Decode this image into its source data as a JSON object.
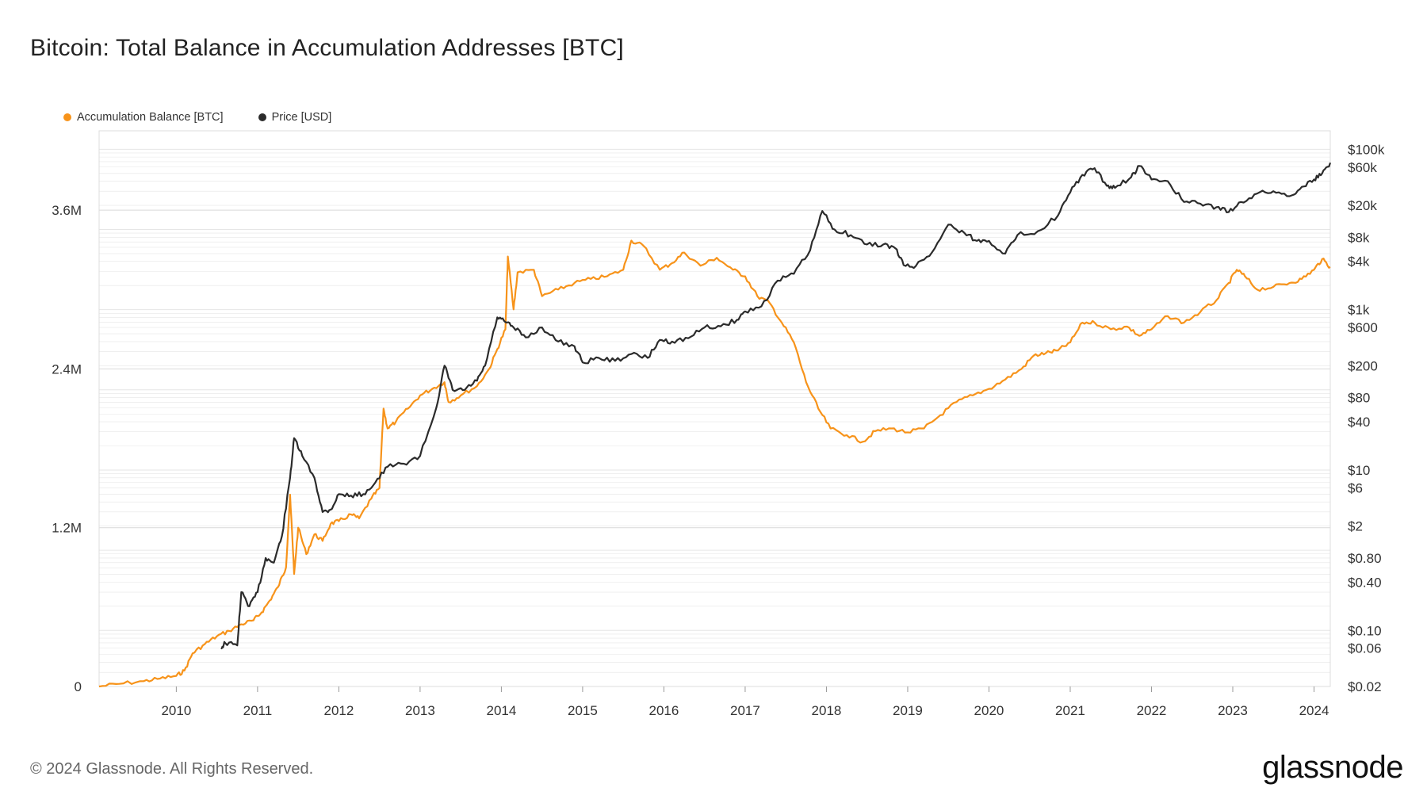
{
  "title": "Bitcoin: Total Balance in Accumulation Addresses [BTC]",
  "footer": "© 2024 Glassnode. All Rights Reserved.",
  "logo": "glassnode",
  "colors": {
    "balance": "#F7931A",
    "price": "#2B2B2B",
    "grid": "#E6E6E6",
    "frame": "#DDDDDD"
  },
  "chart_data": {
    "type": "line",
    "title": "Bitcoin: Total Balance in Accumulation Addresses [BTC]",
    "legend_position": "top-left",
    "grid": true,
    "x_ticks": [
      "2010",
      "2011",
      "2012",
      "2013",
      "2014",
      "2015",
      "2016",
      "2017",
      "2018",
      "2019",
      "2020",
      "2021",
      "2022",
      "2023",
      "2024"
    ],
    "x_range": [
      2009.05,
      2024.2
    ],
    "y_left": {
      "ticks": [
        {
          "value": 0,
          "label": "0"
        },
        {
          "value": 1200000,
          "label": "1.2M"
        },
        {
          "value": 2400000,
          "label": "2.4M"
        },
        {
          "value": 3600000,
          "label": "3.6M"
        }
      ],
      "range": [
        0,
        4200000
      ]
    },
    "y_right": {
      "scale": "log",
      "ticks": [
        {
          "value": 100000,
          "label": "$100k"
        },
        {
          "value": 60000,
          "label": "$60k"
        },
        {
          "value": 20000,
          "label": "$20k"
        },
        {
          "value": 8000,
          "label": "$8k"
        },
        {
          "value": 4000,
          "label": "$4k"
        },
        {
          "value": 1000,
          "label": "$1k"
        },
        {
          "value": 600,
          "label": "$600"
        },
        {
          "value": 200,
          "label": "$200"
        },
        {
          "value": 80,
          "label": "$80"
        },
        {
          "value": 40,
          "label": "$40"
        },
        {
          "value": 10,
          "label": "$10"
        },
        {
          "value": 6,
          "label": "$6"
        },
        {
          "value": 2,
          "label": "$2"
        },
        {
          "value": 0.8,
          "label": "$0.80"
        },
        {
          "value": 0.4,
          "label": "$0.40"
        },
        {
          "value": 0.1,
          "label": "$0.10"
        },
        {
          "value": 0.06,
          "label": "$0.06"
        },
        {
          "value": 0.02,
          "label": "$0.02"
        }
      ],
      "range": [
        0.02,
        170000
      ]
    },
    "series": [
      {
        "name": "Accumulation Balance [BTC]",
        "axis": "left",
        "points": [
          [
            2009.05,
            0
          ],
          [
            2009.3,
            20000
          ],
          [
            2009.6,
            40000
          ],
          [
            2009.8,
            60000
          ],
          [
            2010.0,
            80000
          ],
          [
            2010.1,
            120000
          ],
          [
            2010.2,
            250000
          ],
          [
            2010.35,
            320000
          ],
          [
            2010.5,
            380000
          ],
          [
            2010.65,
            420000
          ],
          [
            2010.8,
            470000
          ],
          [
            2010.95,
            500000
          ],
          [
            2011.05,
            560000
          ],
          [
            2011.15,
            650000
          ],
          [
            2011.25,
            750000
          ],
          [
            2011.35,
            900000
          ],
          [
            2011.4,
            1450000
          ],
          [
            2011.45,
            850000
          ],
          [
            2011.5,
            1200000
          ],
          [
            2011.6,
            1000000
          ],
          [
            2011.7,
            1150000
          ],
          [
            2011.8,
            1100000
          ],
          [
            2011.9,
            1230000
          ],
          [
            2012.0,
            1250000
          ],
          [
            2012.15,
            1300000
          ],
          [
            2012.25,
            1270000
          ],
          [
            2012.4,
            1420000
          ],
          [
            2012.5,
            1500000
          ],
          [
            2012.55,
            2100000
          ],
          [
            2012.6,
            1950000
          ],
          [
            2012.7,
            2000000
          ],
          [
            2012.85,
            2100000
          ],
          [
            2013.0,
            2200000
          ],
          [
            2013.15,
            2250000
          ],
          [
            2013.3,
            2300000
          ],
          [
            2013.35,
            2150000
          ],
          [
            2013.5,
            2200000
          ],
          [
            2013.7,
            2270000
          ],
          [
            2013.85,
            2400000
          ],
          [
            2013.95,
            2550000
          ],
          [
            2014.05,
            2700000
          ],
          [
            2014.08,
            3250000
          ],
          [
            2014.15,
            2850000
          ],
          [
            2014.2,
            3130000
          ],
          [
            2014.4,
            3150000
          ],
          [
            2014.5,
            2950000
          ],
          [
            2014.7,
            3000000
          ],
          [
            2014.9,
            3050000
          ],
          [
            2015.1,
            3080000
          ],
          [
            2015.3,
            3100000
          ],
          [
            2015.5,
            3150000
          ],
          [
            2015.6,
            3370000
          ],
          [
            2015.75,
            3330000
          ],
          [
            2015.95,
            3150000
          ],
          [
            2016.1,
            3200000
          ],
          [
            2016.25,
            3280000
          ],
          [
            2016.45,
            3180000
          ],
          [
            2016.65,
            3240000
          ],
          [
            2016.85,
            3150000
          ],
          [
            2017.0,
            3100000
          ],
          [
            2017.15,
            2950000
          ],
          [
            2017.3,
            2900000
          ],
          [
            2017.45,
            2750000
          ],
          [
            2017.6,
            2600000
          ],
          [
            2017.75,
            2300000
          ],
          [
            2017.9,
            2100000
          ],
          [
            2018.05,
            1950000
          ],
          [
            2018.25,
            1900000
          ],
          [
            2018.45,
            1850000
          ],
          [
            2018.6,
            1930000
          ],
          [
            2018.8,
            1950000
          ],
          [
            2019.0,
            1920000
          ],
          [
            2019.2,
            1950000
          ],
          [
            2019.4,
            2050000
          ],
          [
            2019.6,
            2150000
          ],
          [
            2019.8,
            2200000
          ],
          [
            2020.0,
            2250000
          ],
          [
            2020.2,
            2320000
          ],
          [
            2020.4,
            2400000
          ],
          [
            2020.55,
            2500000
          ],
          [
            2020.7,
            2520000
          ],
          [
            2020.85,
            2540000
          ],
          [
            2021.0,
            2600000
          ],
          [
            2021.15,
            2750000
          ],
          [
            2021.3,
            2750000
          ],
          [
            2021.5,
            2700000
          ],
          [
            2021.7,
            2720000
          ],
          [
            2021.85,
            2650000
          ],
          [
            2022.0,
            2700000
          ],
          [
            2022.2,
            2800000
          ],
          [
            2022.4,
            2750000
          ],
          [
            2022.6,
            2830000
          ],
          [
            2022.8,
            2920000
          ],
          [
            2022.95,
            3050000
          ],
          [
            2023.05,
            3150000
          ],
          [
            2023.15,
            3100000
          ],
          [
            2023.3,
            3000000
          ],
          [
            2023.5,
            3020000
          ],
          [
            2023.7,
            3050000
          ],
          [
            2023.85,
            3080000
          ],
          [
            2024.0,
            3150000
          ],
          [
            2024.1,
            3230000
          ],
          [
            2024.2,
            3170000
          ]
        ]
      },
      {
        "name": "Price [USD]",
        "axis": "right",
        "points": [
          [
            2010.55,
            0.06
          ],
          [
            2010.6,
            0.07
          ],
          [
            2010.75,
            0.065
          ],
          [
            2010.8,
            0.3
          ],
          [
            2010.9,
            0.2
          ],
          [
            2011.0,
            0.3
          ],
          [
            2011.1,
            0.8
          ],
          [
            2011.2,
            0.7
          ],
          [
            2011.3,
            1.5
          ],
          [
            2011.4,
            8
          ],
          [
            2011.45,
            25
          ],
          [
            2011.55,
            15
          ],
          [
            2011.7,
            8
          ],
          [
            2011.8,
            3
          ],
          [
            2011.9,
            3.2
          ],
          [
            2012.0,
            5
          ],
          [
            2012.15,
            4.8
          ],
          [
            2012.3,
            5
          ],
          [
            2012.45,
            7
          ],
          [
            2012.6,
            11
          ],
          [
            2012.8,
            12
          ],
          [
            2013.0,
            15
          ],
          [
            2013.2,
            60
          ],
          [
            2013.3,
            200
          ],
          [
            2013.4,
            100
          ],
          [
            2013.55,
            100
          ],
          [
            2013.7,
            130
          ],
          [
            2013.8,
            200
          ],
          [
            2013.95,
            800
          ],
          [
            2014.05,
            700
          ],
          [
            2014.15,
            600
          ],
          [
            2014.3,
            450
          ],
          [
            2014.5,
            600
          ],
          [
            2014.7,
            400
          ],
          [
            2014.9,
            350
          ],
          [
            2015.0,
            220
          ],
          [
            2015.2,
            250
          ],
          [
            2015.4,
            230
          ],
          [
            2015.6,
            280
          ],
          [
            2015.8,
            250
          ],
          [
            2015.95,
            420
          ],
          [
            2016.1,
            400
          ],
          [
            2016.3,
            440
          ],
          [
            2016.5,
            600
          ],
          [
            2016.7,
            620
          ],
          [
            2016.9,
            750
          ],
          [
            2017.0,
            950
          ],
          [
            2017.2,
            1100
          ],
          [
            2017.4,
            2300
          ],
          [
            2017.6,
            2800
          ],
          [
            2017.8,
            5500
          ],
          [
            2017.95,
            17000
          ],
          [
            2018.1,
            10000
          ],
          [
            2018.3,
            8500
          ],
          [
            2018.5,
            6500
          ],
          [
            2018.7,
            6500
          ],
          [
            2018.85,
            5800
          ],
          [
            2018.95,
            3600
          ],
          [
            2019.1,
            3500
          ],
          [
            2019.3,
            5200
          ],
          [
            2019.5,
            11500
          ],
          [
            2019.7,
            9000
          ],
          [
            2019.85,
            7200
          ],
          [
            2020.0,
            7200
          ],
          [
            2020.2,
            5000
          ],
          [
            2020.35,
            8500
          ],
          [
            2020.6,
            9500
          ],
          [
            2020.85,
            15000
          ],
          [
            2021.0,
            29000
          ],
          [
            2021.15,
            48000
          ],
          [
            2021.3,
            58000
          ],
          [
            2021.45,
            35000
          ],
          [
            2021.55,
            33000
          ],
          [
            2021.75,
            45000
          ],
          [
            2021.85,
            62000
          ],
          [
            2022.0,
            42000
          ],
          [
            2022.2,
            40000
          ],
          [
            2022.4,
            22000
          ],
          [
            2022.6,
            21000
          ],
          [
            2022.8,
            19000
          ],
          [
            2022.95,
            16500
          ],
          [
            2023.1,
            22000
          ],
          [
            2023.3,
            28000
          ],
          [
            2023.5,
            30000
          ],
          [
            2023.7,
            26000
          ],
          [
            2023.85,
            34000
          ],
          [
            2024.0,
            42000
          ],
          [
            2024.1,
            50000
          ],
          [
            2024.2,
            68000
          ]
        ]
      }
    ]
  }
}
